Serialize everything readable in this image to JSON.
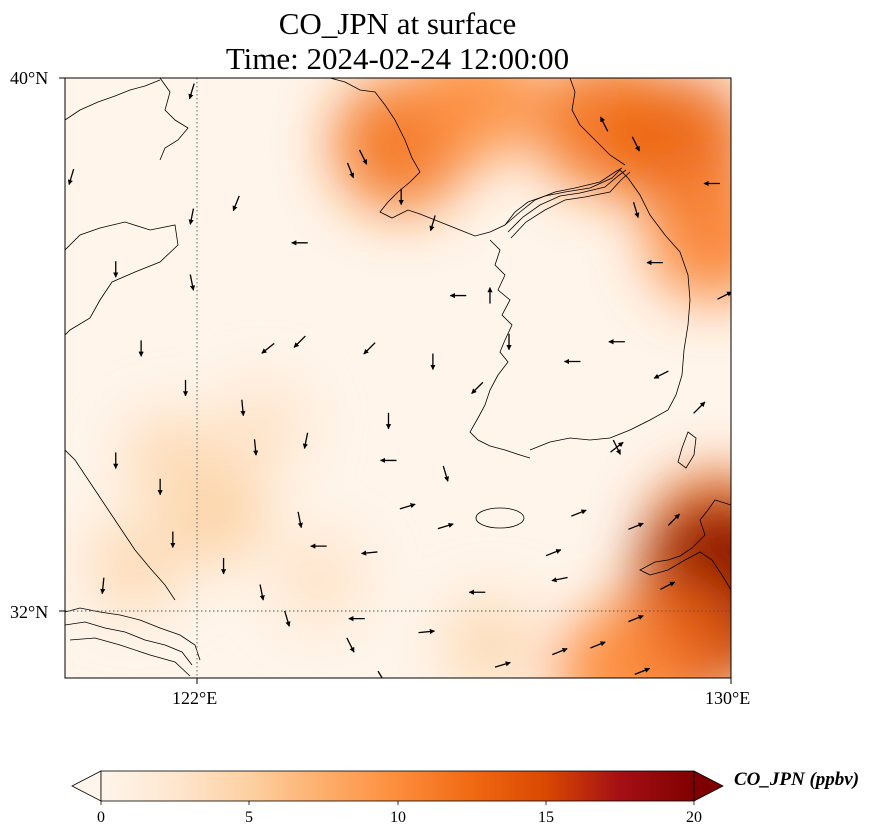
{
  "title": {
    "line1": "CO_JPN at surface",
    "line2": "Time: 2024-02-24 12:00:00"
  },
  "map": {
    "lon_range": [
      119.5,
      130
    ],
    "lat_range": [
      30.9,
      40
    ],
    "lat_ticks": [
      {
        "value": 40,
        "label": "40°N"
      },
      {
        "value": 32,
        "label": "32°N"
      }
    ],
    "lon_ticks": [
      {
        "value": 122,
        "label": "122°E"
      },
      {
        "value": 130,
        "label": "130°E"
      }
    ],
    "gridlines": {
      "lon": [
        122
      ],
      "lat": [
        32
      ],
      "style": "dotted"
    },
    "overlay": "wind vectors (arrows) and coastlines"
  },
  "colorbar": {
    "units_label": "CO_JPN (ppbv)",
    "min": 0,
    "max": 20,
    "ticks": [
      {
        "value": 0,
        "label": "0"
      },
      {
        "value": 5,
        "label": "5"
      },
      {
        "value": 10,
        "label": "10"
      },
      {
        "value": 15,
        "label": "15"
      },
      {
        "value": 20,
        "label": "20"
      }
    ],
    "extend": "both",
    "colormap": [
      "#fff5eb",
      "#fee6ce",
      "#fdd0a2",
      "#fdae6b",
      "#fd8d3c",
      "#f16913",
      "#d94801",
      "#a50f15",
      "#7f0000"
    ]
  },
  "chart_data": {
    "type": "heatmap",
    "variable": "CO_JPN",
    "units": "ppbv",
    "blobs": [
      {
        "lon": 124.8,
        "lat": 39.0,
        "value": 12
      },
      {
        "lon": 126.0,
        "lat": 39.7,
        "value": 10
      },
      {
        "lon": 128.0,
        "lat": 39.3,
        "value": 12
      },
      {
        "lon": 129.2,
        "lat": 39.0,
        "value": 13
      },
      {
        "lon": 129.7,
        "lat": 37.6,
        "value": 11
      },
      {
        "lon": 129.8,
        "lat": 32.9,
        "value": 14
      },
      {
        "lon": 129.9,
        "lat": 32.2,
        "value": 20
      },
      {
        "lon": 129.1,
        "lat": 31.4,
        "value": 13
      },
      {
        "lon": 128.2,
        "lat": 31.0,
        "value": 10
      },
      {
        "lon": 121.9,
        "lat": 33.4,
        "value": 5
      },
      {
        "lon": 121.2,
        "lat": 34.2,
        "value": 4
      },
      {
        "lon": 122.6,
        "lat": 34.7,
        "value": 3
      },
      {
        "lon": 120.6,
        "lat": 32.6,
        "value": 4
      },
      {
        "lon": 123.5,
        "lat": 32.4,
        "value": 3
      },
      {
        "lon": 126.2,
        "lat": 31.4,
        "value": 4
      }
    ],
    "wind_vectors": [
      {
        "lon": 121.5,
        "lat": 39.8,
        "u": -0.3,
        "v": -1
      },
      {
        "lon": 119.6,
        "lat": 38.5,
        "u": -0.3,
        "v": -1
      },
      {
        "lon": 121.5,
        "lat": 37.9,
        "u": -0.2,
        "v": -1
      },
      {
        "lon": 120.3,
        "lat": 37.1,
        "u": 0,
        "v": -1
      },
      {
        "lon": 121.5,
        "lat": 36.9,
        "u": 0.2,
        "v": -1
      },
      {
        "lon": 120.7,
        "lat": 35.9,
        "u": 0,
        "v": -1
      },
      {
        "lon": 121.4,
        "lat": 35.3,
        "u": 0,
        "v": -1
      },
      {
        "lon": 122.3,
        "lat": 35.0,
        "u": 0.1,
        "v": -1
      },
      {
        "lon": 120.3,
        "lat": 34.2,
        "u": 0,
        "v": -1
      },
      {
        "lon": 121.0,
        "lat": 33.8,
        "u": 0,
        "v": -1
      },
      {
        "lon": 121.2,
        "lat": 33.0,
        "u": 0,
        "v": -1
      },
      {
        "lon": 120.1,
        "lat": 32.3,
        "u": -0.1,
        "v": -1
      },
      {
        "lon": 122.0,
        "lat": 32.6,
        "u": 0,
        "v": -1
      },
      {
        "lon": 122.6,
        "lat": 32.2,
        "u": 0.2,
        "v": -1
      },
      {
        "lon": 123.0,
        "lat": 31.8,
        "u": 0.3,
        "v": -1
      },
      {
        "lon": 124.0,
        "lat": 31.4,
        "u": 0.5,
        "v": -1
      },
      {
        "lon": 124.5,
        "lat": 30.9,
        "u": 0.6,
        "v": -1
      },
      {
        "lon": 123.2,
        "lat": 33.3,
        "u": 0.2,
        "v": -1
      },
      {
        "lon": 122.5,
        "lat": 34.4,
        "u": 0.1,
        "v": -1
      },
      {
        "lon": 123.3,
        "lat": 34.5,
        "u": -0.2,
        "v": -1
      },
      {
        "lon": 124.6,
        "lat": 34.2,
        "u": -1,
        "v": 0
      },
      {
        "lon": 125.5,
        "lat": 34.0,
        "u": 0.3,
        "v": -1
      },
      {
        "lon": 124.9,
        "lat": 33.5,
        "u": 1,
        "v": 0.3
      },
      {
        "lon": 125.5,
        "lat": 33.2,
        "u": 1,
        "v": 0.3
      },
      {
        "lon": 123.5,
        "lat": 32.9,
        "u": -1,
        "v": 0
      },
      {
        "lon": 124.3,
        "lat": 32.8,
        "u": -1,
        "v": -0.1
      },
      {
        "lon": 124.1,
        "lat": 31.8,
        "u": -1,
        "v": 0
      },
      {
        "lon": 125.2,
        "lat": 31.6,
        "u": 1,
        "v": 0.1
      },
      {
        "lon": 126.0,
        "lat": 32.2,
        "u": -1,
        "v": 0
      },
      {
        "lon": 127.3,
        "lat": 32.4,
        "u": -1,
        "v": -0.2
      },
      {
        "lon": 127.2,
        "lat": 32.8,
        "u": 1,
        "v": 0.4
      },
      {
        "lon": 127.6,
        "lat": 33.4,
        "u": 1,
        "v": 0.4
      },
      {
        "lon": 128.5,
        "lat": 33.2,
        "u": 1,
        "v": 0.4
      },
      {
        "lon": 128.5,
        "lat": 31.8,
        "u": 1,
        "v": 0.4
      },
      {
        "lon": 127.9,
        "lat": 31.4,
        "u": 1,
        "v": 0.4
      },
      {
        "lon": 127.3,
        "lat": 31.3,
        "u": 1,
        "v": 0.4
      },
      {
        "lon": 126.4,
        "lat": 31.1,
        "u": 1,
        "v": 0.3
      },
      {
        "lon": 128.6,
        "lat": 31.0,
        "u": 1,
        "v": 0.4
      },
      {
        "lon": 129.0,
        "lat": 32.3,
        "u": 1,
        "v": 0.5
      },
      {
        "lon": 128.2,
        "lat": 34.4,
        "u": 0.9,
        "v": 0.7
      },
      {
        "lon": 129.5,
        "lat": 35.0,
        "u": 1,
        "v": 1
      },
      {
        "lon": 124.0,
        "lat": 38.6,
        "u": 0.4,
        "v": -1
      },
      {
        "lon": 124.8,
        "lat": 38.2,
        "u": 0,
        "v": -1
      },
      {
        "lon": 125.3,
        "lat": 37.8,
        "u": -0.3,
        "v": -1
      },
      {
        "lon": 122.2,
        "lat": 38.1,
        "u": -0.4,
        "v": -1
      },
      {
        "lon": 123.2,
        "lat": 37.5,
        "u": -1,
        "v": 0
      },
      {
        "lon": 124.2,
        "lat": 38.8,
        "u": 0.5,
        "v": -1
      },
      {
        "lon": 128.0,
        "lat": 39.3,
        "u": -0.5,
        "v": 1
      },
      {
        "lon": 128.5,
        "lat": 39.0,
        "u": 0.5,
        "v": -1
      },
      {
        "lon": 129.7,
        "lat": 38.4,
        "u": -1,
        "v": 0
      },
      {
        "lon": 128.5,
        "lat": 38.0,
        "u": 0.3,
        "v": -1
      },
      {
        "lon": 128.8,
        "lat": 37.2,
        "u": -1,
        "v": 0
      },
      {
        "lon": 129.9,
        "lat": 36.7,
        "u": 1,
        "v": 0.5
      },
      {
        "lon": 128.2,
        "lat": 36.0,
        "u": -1,
        "v": 0
      },
      {
        "lon": 128.9,
        "lat": 35.5,
        "u": -1,
        "v": -0.5
      },
      {
        "lon": 127.5,
        "lat": 35.7,
        "u": -1,
        "v": 0
      },
      {
        "lon": 126.5,
        "lat": 36.0,
        "u": 0,
        "v": -1
      },
      {
        "lon": 126.2,
        "lat": 36.7,
        "u": 0,
        "v": 1
      },
      {
        "lon": 125.7,
        "lat": 36.7,
        "u": -1,
        "v": 0
      },
      {
        "lon": 125.3,
        "lat": 35.7,
        "u": 0,
        "v": -1
      },
      {
        "lon": 124.3,
        "lat": 35.9,
        "u": -1,
        "v": -1
      },
      {
        "lon": 123.2,
        "lat": 36.0,
        "u": -1,
        "v": -1
      },
      {
        "lon": 122.7,
        "lat": 35.9,
        "u": -1,
        "v": -0.8
      },
      {
        "lon": 124.6,
        "lat": 34.8,
        "u": 0,
        "v": -1
      },
      {
        "lon": 126.0,
        "lat": 35.3,
        "u": -1,
        "v": -1
      },
      {
        "lon": 128.2,
        "lat": 34.4,
        "u": 0.5,
        "v": -1
      },
      {
        "lon": 129.1,
        "lat": 33.3,
        "u": 1,
        "v": 1
      }
    ]
  }
}
